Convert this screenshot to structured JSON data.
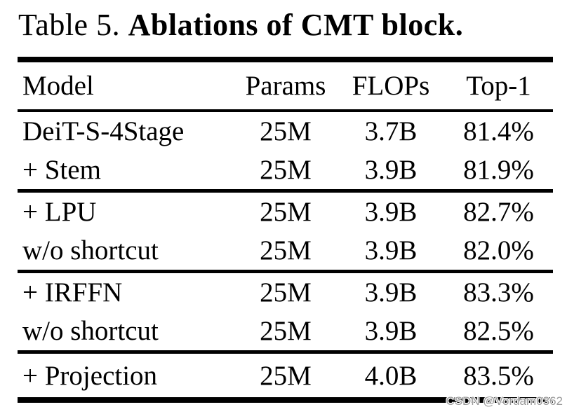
{
  "title": {
    "prefix": "Table 5. ",
    "emphasis": "Ablations of CMT block."
  },
  "table": {
    "header": {
      "model": "Model",
      "params": "Params",
      "flops": "FLOPs",
      "top1": "Top-1"
    },
    "rows": [
      {
        "model": "DeiT-S-4Stage",
        "params": "25M",
        "flops": "3.7B",
        "top1": "81.4%"
      },
      {
        "model": "+ Stem",
        "params": "25M",
        "flops": "3.9B",
        "top1": "81.9%"
      },
      {
        "model": "+ LPU",
        "params": "25M",
        "flops": "3.9B",
        "top1": "82.7%"
      },
      {
        "model": "w/o shortcut",
        "params": "25M",
        "flops": "3.9B",
        "top1": "82.0%"
      },
      {
        "model": "+ IRFFN",
        "params": "25M",
        "flops": "3.9B",
        "top1": "83.3%"
      },
      {
        "model": "w/o shortcut",
        "params": "25M",
        "flops": "3.9B",
        "top1": "82.5%"
      },
      {
        "model": "+ Projection",
        "params": "25M",
        "flops": "4.0B",
        "top1": "83.5%"
      }
    ]
  },
  "watermark": "CSDN @Vordam0362",
  "colors": {
    "text": "#000000",
    "background": "#ffffff",
    "watermark": "#9b9b9b"
  }
}
